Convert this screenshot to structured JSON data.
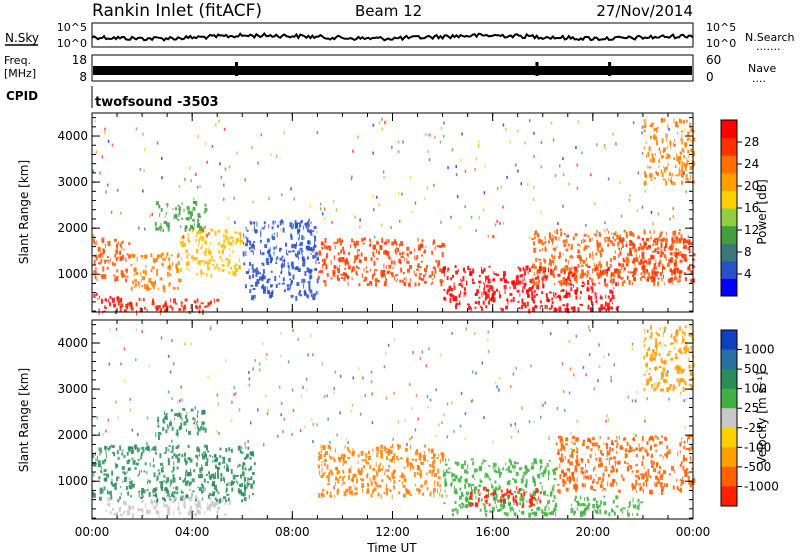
{
  "header": {
    "station": "Rankin Inlet (fitACF)",
    "beam": "Beam 12",
    "date": "27/Nov/2014"
  },
  "noise_panel": {
    "left_label": "N.Sky",
    "left_ticks": [
      "10^5",
      "10^0"
    ],
    "right_ticks": [
      "10^5",
      "10^0"
    ],
    "right_label": "N.Search",
    "right_label_dots": "......."
  },
  "freq_panel": {
    "label_line1": "Freq.",
    "label_line2": "[MHz]",
    "left_ticks": [
      "18",
      "8"
    ],
    "right_ticks": [
      "60",
      "0"
    ],
    "right_label": "Nave",
    "right_label_dots": "...."
  },
  "cpid_panel": {
    "label": "CPID",
    "program": "twofsound",
    "program_id": "-3503"
  },
  "chart_data": [
    {
      "type": "heatmap",
      "title": "",
      "ylabel": "Slant Range [km]",
      "xlabel": "",
      "x_range_hours": [
        0,
        24
      ],
      "ylim": [
        180,
        4500
      ],
      "y_ticks": [
        "1000",
        "2000",
        "3000",
        "4000"
      ],
      "colorbar": {
        "label": "Power [dB]",
        "tick_labels": [
          "4",
          "8",
          "12",
          "16",
          "20",
          "24",
          "28"
        ],
        "colors": [
          "#0000ff",
          "#2850c8",
          "#3c7878",
          "#40a040",
          "#90d040",
          "#ffd000",
          "#ffa000",
          "#ff7000",
          "#ff3000",
          "#ff0000"
        ]
      },
      "scatter_bands": [
        {
          "t0": 0.0,
          "t1": 1.0,
          "r0": 200,
          "r1": 600,
          "color": "#ff0000"
        },
        {
          "t0": 1.0,
          "t1": 5.0,
          "r0": 200,
          "r1": 500,
          "color": "#ff2000"
        },
        {
          "t0": 0.0,
          "t1": 1.5,
          "r0": 900,
          "r1": 1800,
          "color": "#ff5000"
        },
        {
          "t0": 1.5,
          "t1": 3.5,
          "r0": 700,
          "r1": 1500,
          "color": "#ff8000"
        },
        {
          "t0": 3.5,
          "t1": 6.0,
          "r0": 1000,
          "r1": 2000,
          "color": "#ffc000"
        },
        {
          "t0": 2.5,
          "t1": 4.5,
          "r0": 2000,
          "r1": 2600,
          "color": "#40a040"
        },
        {
          "t0": 6.0,
          "t1": 9.0,
          "r0": 500,
          "r1": 2200,
          "color": "#2850c8"
        },
        {
          "t0": 9.0,
          "t1": 14.0,
          "r0": 800,
          "r1": 1800,
          "color": "#ff4000"
        },
        {
          "t0": 14.0,
          "t1": 21.0,
          "r0": 250,
          "r1": 1200,
          "color": "#ff0000"
        },
        {
          "t0": 17.5,
          "t1": 23.5,
          "r0": 800,
          "r1": 2000,
          "color": "#ff6000"
        },
        {
          "t0": 21.0,
          "t1": 24.0,
          "r0": 900,
          "r1": 1800,
          "color": "#ff3000"
        },
        {
          "t0": 22.0,
          "t1": 24.0,
          "r0": 3000,
          "r1": 4400,
          "color": "#ff8000"
        }
      ]
    },
    {
      "type": "heatmap",
      "title": "",
      "ylabel": "Slant Range [km]",
      "xlabel": "Time UT",
      "x_range_hours": [
        0,
        24
      ],
      "x_tick_labels": [
        "00:00",
        "04:00",
        "08:00",
        "12:00",
        "16:00",
        "20:00",
        "00:00"
      ],
      "ylim": [
        180,
        4500
      ],
      "y_ticks": [
        "1000",
        "2000",
        "3000",
        "4000"
      ],
      "colorbar": {
        "label": "Velocity [m s⁻¹]",
        "tick_labels": [
          "1000",
          "500",
          "100",
          "25",
          "-25",
          "-100",
          "-500",
          "-1000"
        ],
        "colors": [
          "#1040c0",
          "#2870a0",
          "#2c8c5a",
          "#40b040",
          "#c8c8c8",
          "#ffd000",
          "#ffa000",
          "#ff6000",
          "#ff2000"
        ]
      },
      "scatter_bands": [
        {
          "t0": 0.0,
          "t1": 6.5,
          "r0": 600,
          "r1": 1800,
          "color": "#2c8c5a"
        },
        {
          "t0": 0.5,
          "t1": 5.5,
          "r0": 300,
          "r1": 700,
          "color": "#c8c8c8"
        },
        {
          "t0": 2.5,
          "t1": 4.5,
          "r0": 2000,
          "r1": 2600,
          "color": "#2c8c5a"
        },
        {
          "t0": 9.0,
          "t1": 14.0,
          "r0": 700,
          "r1": 1800,
          "color": "#ff8000"
        },
        {
          "t0": 14.0,
          "t1": 18.5,
          "r0": 300,
          "r1": 1500,
          "color": "#40b040"
        },
        {
          "t0": 15.0,
          "t1": 18.0,
          "r0": 500,
          "r1": 900,
          "color": "#ff2000"
        },
        {
          "t0": 18.5,
          "t1": 24.0,
          "r0": 800,
          "r1": 2000,
          "color": "#ff6000"
        },
        {
          "t0": 19.0,
          "t1": 22.0,
          "r0": 300,
          "r1": 700,
          "color": "#40b040"
        },
        {
          "t0": 22.0,
          "t1": 24.0,
          "r0": 3000,
          "r1": 4400,
          "color": "#ffa000"
        }
      ]
    }
  ]
}
